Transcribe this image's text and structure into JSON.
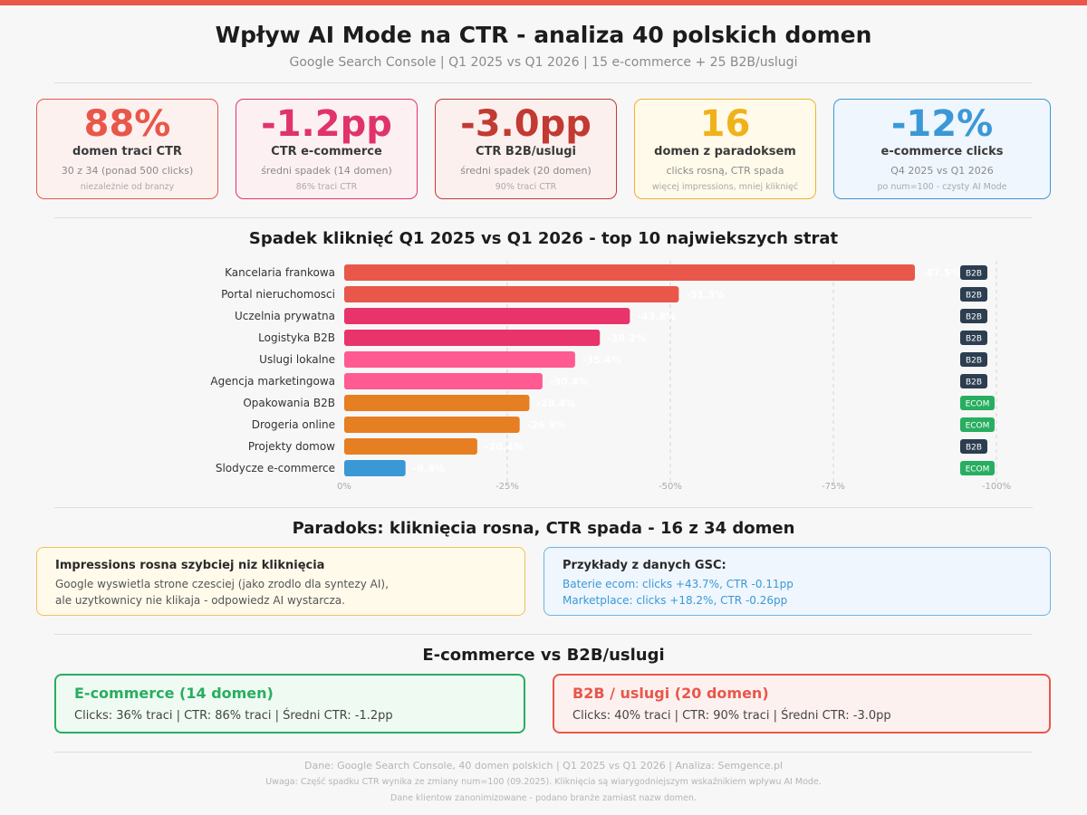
{
  "header": {
    "title": "Wpływ AI Mode na CTR - analiza 40 polskich domen",
    "subtitle": "Google Search Console | Q1 2025 vs Q1 2026 | 15 e-commerce + 25 B2B/uslugi"
  },
  "kpis": [
    {
      "value": "88%",
      "label": "domen traci CTR",
      "sub": "30 z 34 (ponad 500 clicks)",
      "note": "niezależnie od branzy",
      "color": "#e8574a",
      "bg": "#fdf1f0",
      "border": "#e8574a"
    },
    {
      "value": "-1.2pp",
      "label": "CTR e-commerce",
      "sub": "średni spadek (14 domen)",
      "note": "86% traci CTR",
      "color": "#e0336b",
      "bg": "#fdf0f3",
      "border": "#e0336b"
    },
    {
      "value": "-3.0pp",
      "label": "CTR B2B/uslugi",
      "sub": "średni spadek (20 domen)",
      "note": "90% traci CTR",
      "color": "#c23a32",
      "bg": "#fcf0ef",
      "border": "#c23a32"
    },
    {
      "value": "16",
      "label": "domen z paradoksem",
      "sub": "clicks rosną, CTR spada",
      "note": "więcej impressions, mniej kliknięć",
      "color": "#f0b21a",
      "bg": "#fffaea",
      "border": "#efb22a"
    },
    {
      "value": "-12%",
      "label": "e-commerce clicks",
      "sub": "Q4 2025 vs Q1 2026",
      "note": "po num=100 - czysty AI Mode",
      "color": "#3b98d6",
      "bg": "#eff6fd",
      "border": "#3b98d6"
    }
  ],
  "chart_section_title": "Spadek kliknięć Q1 2025 vs Q1 2026 - top 10 najwiekszych strat",
  "chart_data": {
    "type": "bar",
    "orientation": "horizontal",
    "title": "Spadek kliknięć Q1 2025 vs Q1 2026 - top 10 najwiekszych strat",
    "categories": [
      "Kancelaria frankowa",
      "Portal nieruchomosci",
      "Uczelnia prywatna",
      "Logistyka B2B",
      "Uslugi lokalne",
      "Agencja marketingowa",
      "Opakowania B2B",
      "Drogeria online",
      "Projekty domow",
      "Slodycze e-commerce"
    ],
    "values": [
      -87.5,
      -51.3,
      -43.8,
      -39.2,
      -35.4,
      -30.4,
      -28.4,
      -26.9,
      -20.4,
      -9.4
    ],
    "data_labels": [
      "-87.5%",
      "-51.3%",
      "-43.8%",
      "-39.2%",
      "-35.4%",
      "-30.4%",
      "-28.4%",
      "-26.9%",
      "-20.4%",
      "-9.4%"
    ],
    "bar_colors": [
      "#e8574a",
      "#e8574a",
      "#e8336b",
      "#e8336b",
      "#ff5a92",
      "#ff5a92",
      "#e67e22",
      "#e67e22",
      "#e67e22",
      "#3b98d6"
    ],
    "tags": [
      "B2B",
      "B2B",
      "B2B",
      "B2B",
      "B2B",
      "B2B",
      "ECOM",
      "ECOM",
      "B2B",
      "ECOM"
    ],
    "tag_colors": {
      "B2B": "#2c3e50",
      "ECOM": "#27ae60"
    },
    "xticks": [
      0,
      -25,
      -50,
      -75,
      -100
    ],
    "xtick_labels": [
      "0%",
      "-25%",
      "-50%",
      "-75%",
      "-100%"
    ],
    "xlim": [
      0,
      -100
    ],
    "grid": true
  },
  "paradox": {
    "title": "Paradoks: kliknięcia rosna, CTR spada - 16 z 34 domen",
    "left": {
      "heading": "Impressions rosna szybciej niz kliknięcia",
      "line1": "Google wyswietla strone czesciej (jako zrodlo dla syntezy AI),",
      "line2": "ale uzytkownicy nie klikaja - odpowiedz AI wystarcza."
    },
    "right": {
      "heading": "Przykłady z danych GSC:",
      "line1": "Baterie ecom: clicks +43.7%, CTR -0.11pp",
      "line2": "Marketplace: clicks +18.2%, CTR -0.26pp"
    }
  },
  "compare": {
    "title": "E-commerce vs B2B/uslugi",
    "ecom": {
      "heading": "E-commerce (14 domen)",
      "line": "Clicks: 36% traci | CTR: 86% traci | Średni CTR: -1.2pp",
      "color": "#27ae60"
    },
    "b2b": {
      "heading": "B2B / uslugi (20 domen)",
      "line": "Clicks: 40% traci | CTR: 90% traci | Średni CTR: -3.0pp",
      "color": "#e8574a"
    }
  },
  "footer": {
    "line1": "Dane: Google Search Console, 40 domen polskich | Q1 2025 vs Q1 2026 | Analiza: Semgence.pl",
    "line2": "Uwaga: Część spadku CTR wynika ze zmiany num=100 (09.2025). Kliknięcia są wiarygodniejszym wskaźnikiem wpływu AI Mode.",
    "line3": "Dane klientow zanonimizowane - podano branże zamiast nazw domen."
  }
}
